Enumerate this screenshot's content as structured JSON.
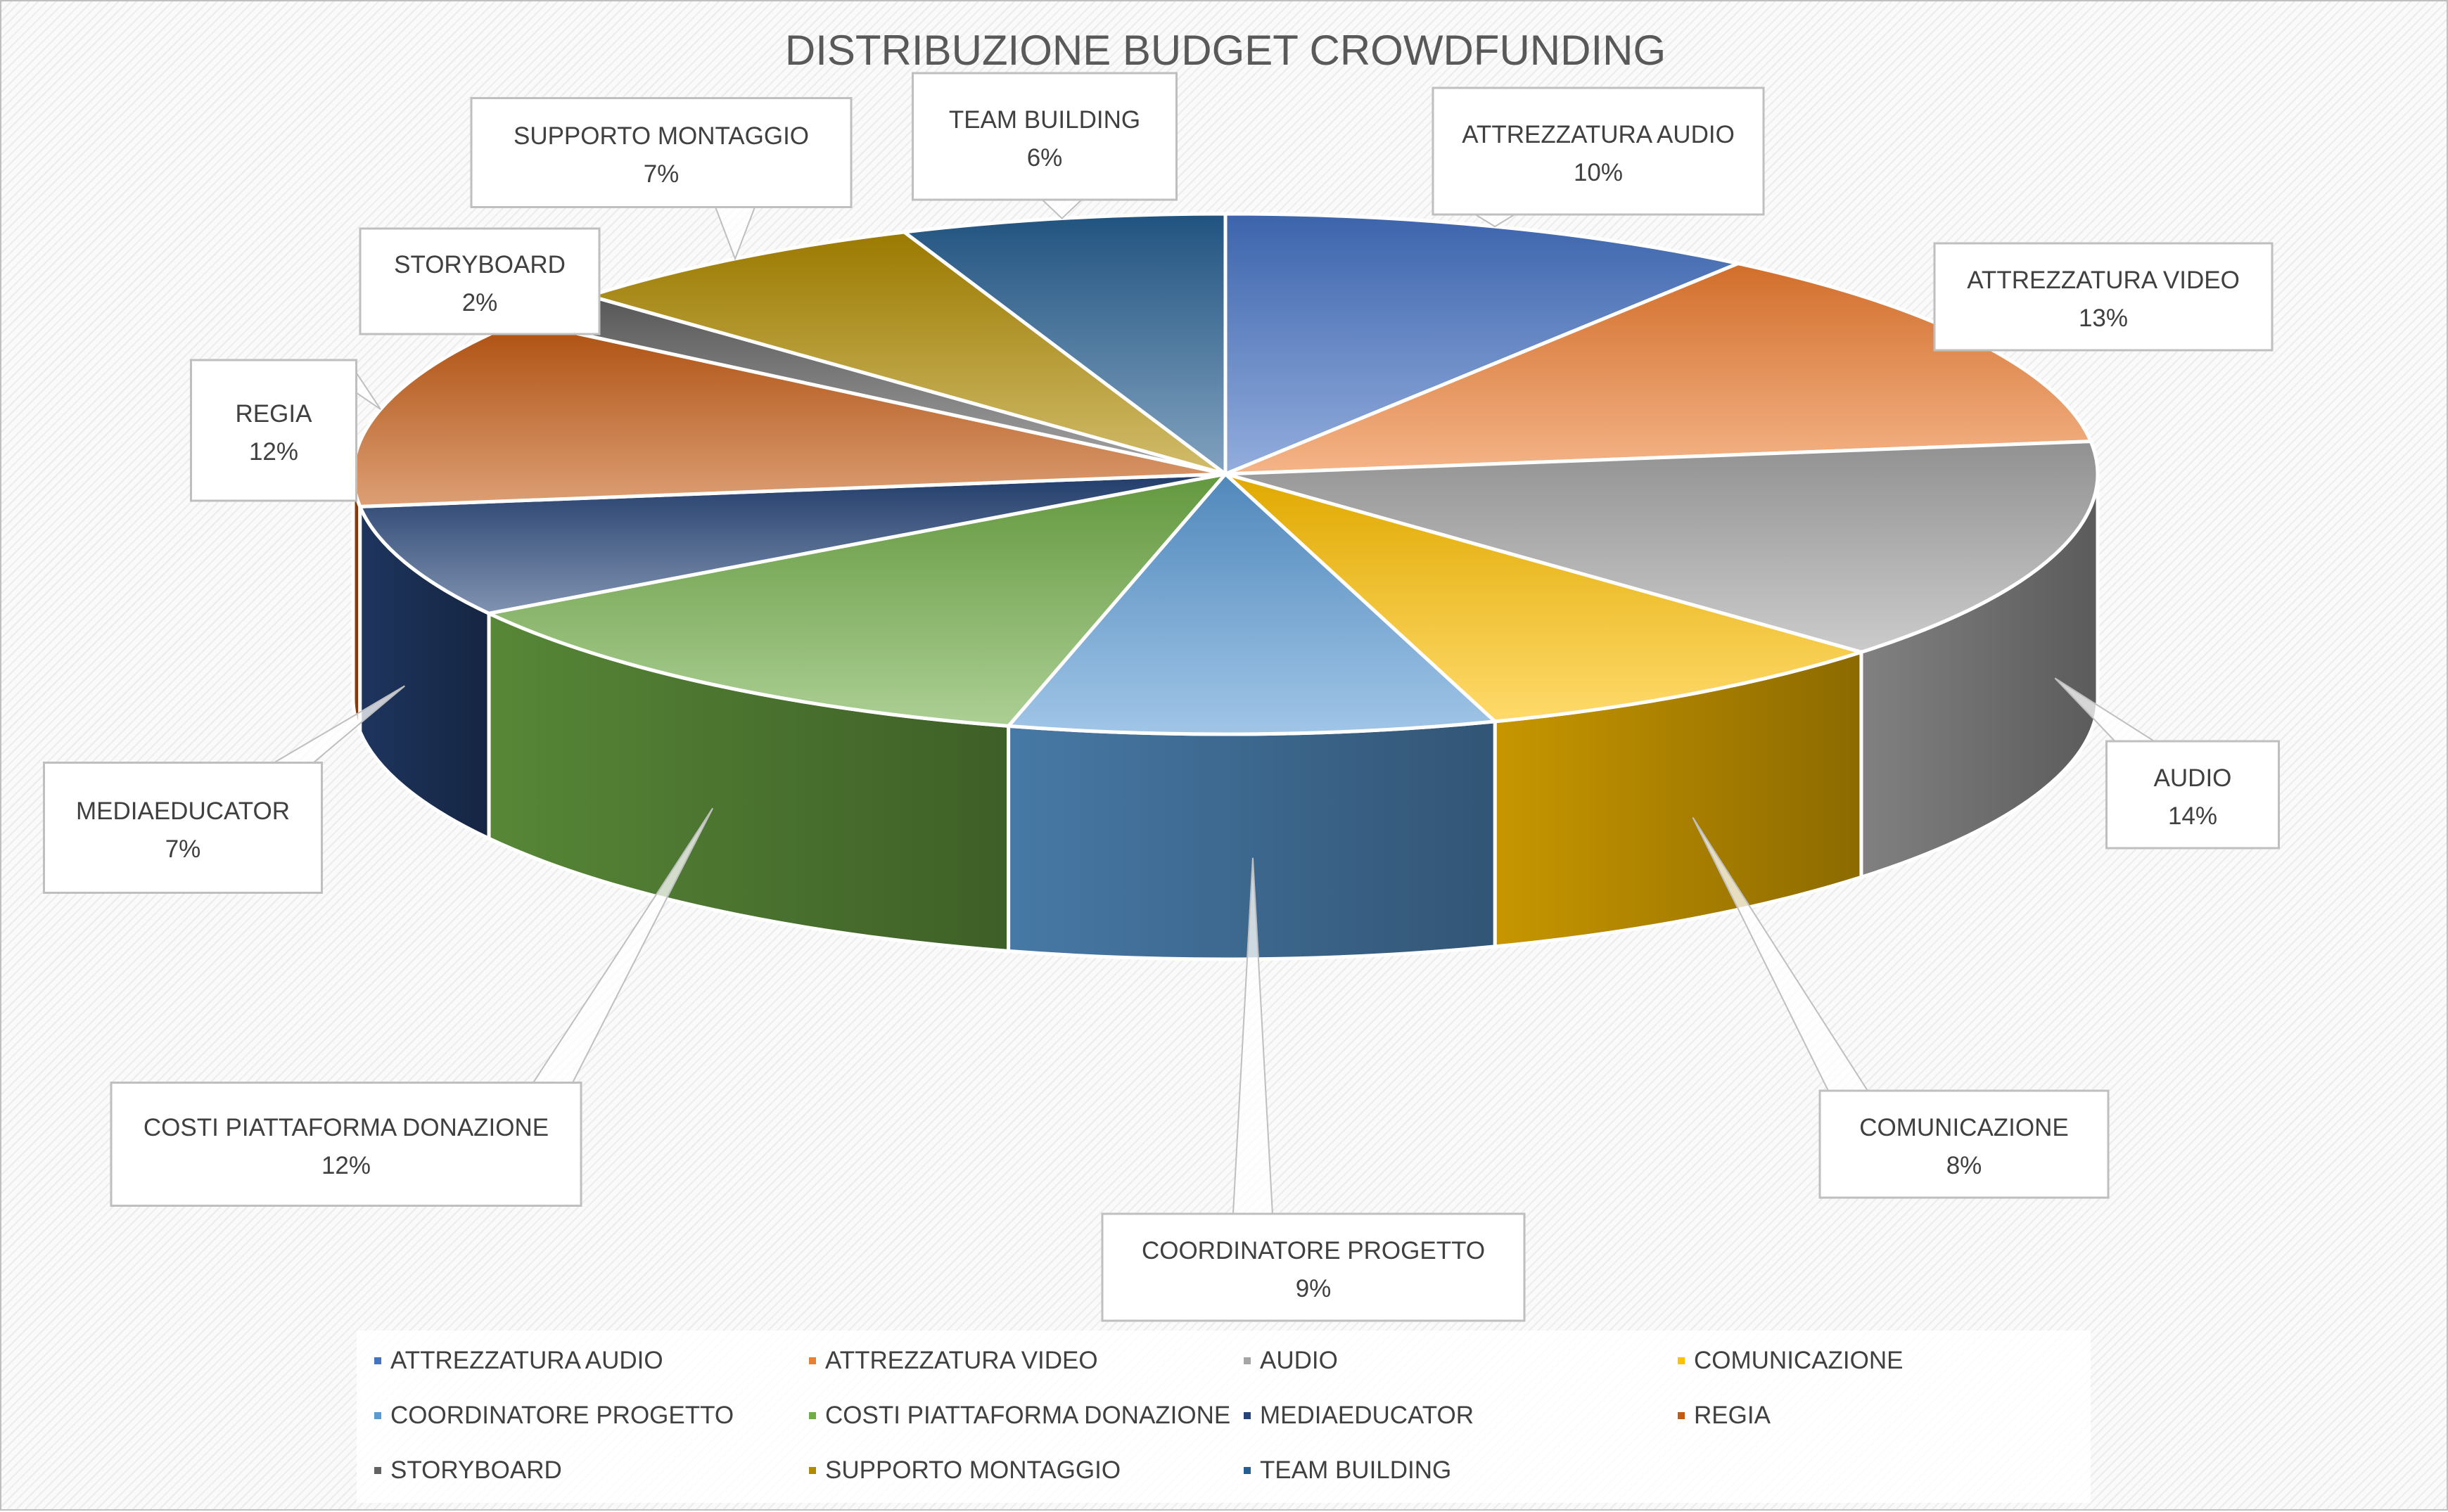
{
  "chart_data": {
    "type": "pie",
    "title": "DISTRIBUZIONE BUDGET CROWDFUNDING",
    "categories": [
      "ATTREZZATURA AUDIO",
      "ATTREZZATURA VIDEO",
      "AUDIO",
      "COMUNICAZIONE",
      "COORDINATORE PROGETTO",
      "COSTI PIATTAFORMA DONAZIONE",
      "MEDIAEDUCATOR",
      "REGIA",
      "STORYBOARD",
      "SUPPORTO MONTAGGIO",
      "TEAM BUILDING"
    ],
    "values": [
      10,
      13,
      14,
      8,
      9,
      12,
      7,
      12,
      2,
      7,
      6
    ],
    "value_labels": [
      "10%",
      "13%",
      "14%",
      "8%",
      "9%",
      "12%",
      "7%",
      "12%",
      "2%",
      "7%",
      "6%"
    ],
    "colors": [
      "#4472c4",
      "#ed7d31",
      "#a5a5a5",
      "#ffc000",
      "#5b9bd5",
      "#70ad47",
      "#264478",
      "#c55a11",
      "#636363",
      "#b08b00",
      "#255e91"
    ],
    "style": "3d-pie",
    "legend_position": "bottom",
    "grid": false
  }
}
